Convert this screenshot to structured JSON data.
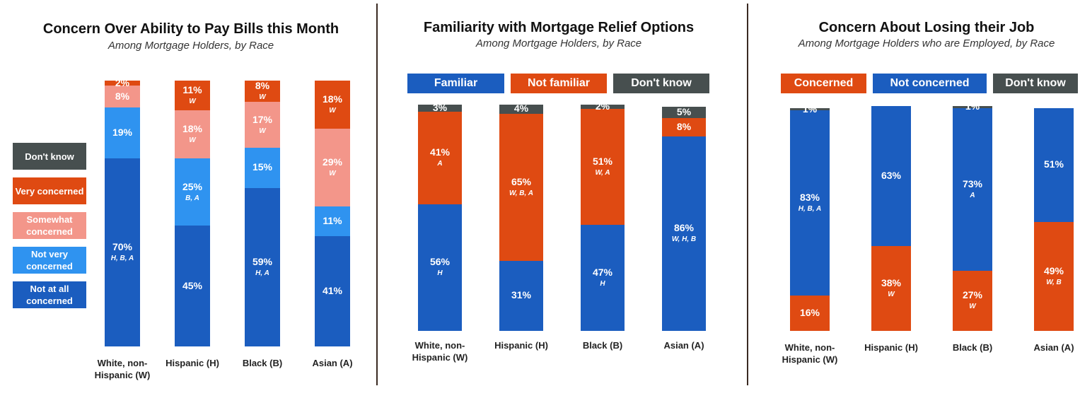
{
  "chart_data": [
    {
      "type": "stacked_bar",
      "title": "Concern Over Ability to Pay Bills this Month",
      "subtitle": "Among Mortgage Holders, by Race",
      "legend": "left",
      "categories": [
        "White, non-Hispanic (W)",
        "Hispanic (H)",
        "Black (B)",
        "Asian (A)"
      ],
      "series": [
        {
          "name": "Not at all concerned",
          "color": "#1b5dbf",
          "values": [
            70,
            45,
            59,
            41
          ],
          "value_labels": [
            "70%",
            "45%",
            "59%",
            "41%"
          ],
          "sig_labels": [
            "H, B, A",
            null,
            "H, A",
            null
          ]
        },
        {
          "name": "Not very concerned",
          "color": "#2f93f0",
          "values": [
            19,
            25,
            15,
            11
          ],
          "value_labels": [
            "19%",
            "25%",
            "15%",
            "11%"
          ],
          "sig_labels": [
            null,
            "B, A",
            null,
            null
          ]
        },
        {
          "name": "Somewhat concerned",
          "color": "#f3968a",
          "values": [
            8,
            18,
            17,
            29
          ],
          "value_labels": [
            "8%",
            "18%",
            "17%",
            "29%"
          ],
          "sig_labels": [
            null,
            "W",
            "W",
            "W"
          ]
        },
        {
          "name": "Very concerned",
          "color": "#df4a12",
          "values": [
            2,
            11,
            8,
            18
          ],
          "value_labels": [
            "2%",
            "11%",
            "8%",
            "18%"
          ],
          "sig_labels": [
            null,
            "W",
            "W",
            "W"
          ]
        },
        {
          "name": "Don't know",
          "color": "#474f4f",
          "values": [
            0,
            0,
            0,
            0
          ],
          "value_labels": [
            null,
            null,
            null,
            null
          ],
          "sig_labels": [
            null,
            null,
            null,
            null
          ]
        }
      ]
    },
    {
      "type": "stacked_bar",
      "title": "Familiarity with Mortgage Relief Options",
      "subtitle": "Among Mortgage Holders, by Race",
      "legend": "top",
      "categories": [
        "White, non-Hispanic (W)",
        "Hispanic (H)",
        "Black (B)",
        "Asian (A)"
      ],
      "series": [
        {
          "name": "Familiar",
          "color": "#1b5dbf",
          "values": [
            56,
            31,
            47,
            86
          ],
          "value_labels": [
            "56%",
            "31%",
            "47%",
            "86%"
          ],
          "sig_labels": [
            "H",
            null,
            "H",
            "W, H, B"
          ]
        },
        {
          "name": "Not familiar",
          "color": "#df4a12",
          "values": [
            41,
            65,
            51,
            8
          ],
          "value_labels": [
            "41%",
            "65%",
            "51%",
            "8%"
          ],
          "sig_labels": [
            "A",
            "W, B, A",
            "W, A",
            null
          ]
        },
        {
          "name": "Don't know",
          "color": "#474f4f",
          "values": [
            3,
            4,
            2,
            5
          ],
          "value_labels": [
            "3%",
            "4%",
            "2%",
            "5%"
          ],
          "sig_labels": [
            null,
            null,
            null,
            null
          ]
        }
      ]
    },
    {
      "type": "stacked_bar",
      "title": "Concern About Losing their Job",
      "subtitle": "Among Mortgage Holders who are Employed, by Race",
      "legend": "top",
      "categories": [
        "White, non-Hispanic (W)",
        "Hispanic (H)",
        "Black (B)",
        "Asian (A)"
      ],
      "series": [
        {
          "name": "Concerned",
          "color": "#df4a12",
          "values": [
            16,
            38,
            27,
            49
          ],
          "value_labels": [
            "16%",
            "38%",
            "27%",
            "49%"
          ],
          "sig_labels": [
            null,
            "W",
            "W",
            "W, B"
          ]
        },
        {
          "name": "Not concerned",
          "color": "#1b5dbf",
          "values": [
            83,
            63,
            73,
            51
          ],
          "value_labels": [
            "83%",
            "63%",
            "73%",
            "51%"
          ],
          "sig_labels": [
            "H, B, A",
            null,
            "A",
            null
          ]
        },
        {
          "name": "Don't know",
          "color": "#474f4f",
          "values": [
            1,
            0,
            1,
            0
          ],
          "value_labels": [
            "1%",
            null,
            "1%",
            null
          ],
          "sig_labels": [
            null,
            null,
            null,
            null
          ]
        }
      ]
    }
  ]
}
